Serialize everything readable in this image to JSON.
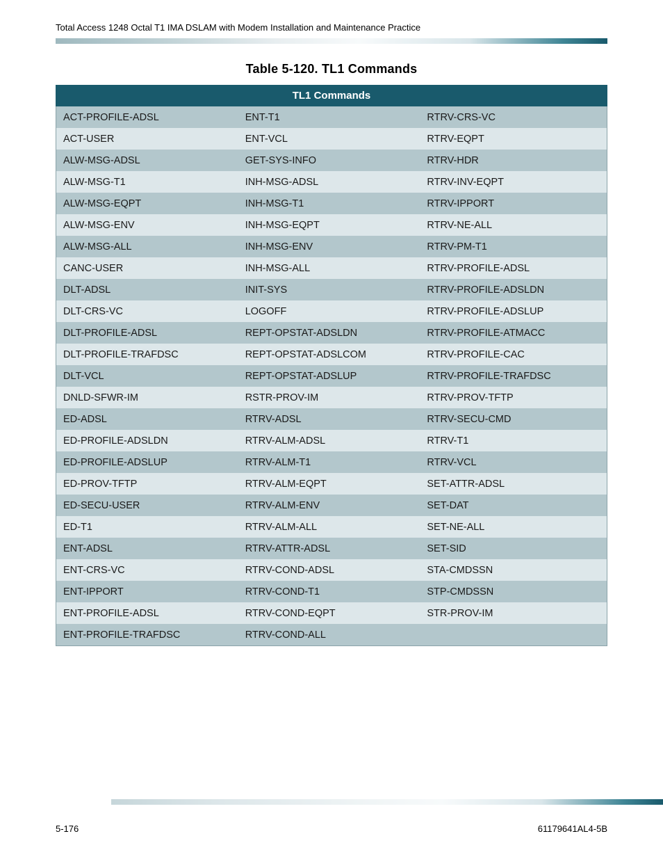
{
  "header": {
    "doc_title": "Total Access 1248 Octal T1 IMA DSLAM with Modem Installation and Maintenance Practice"
  },
  "gradient": {
    "stops_header": [
      "#9fb9bf",
      "#c0d2d6",
      "#e8eef0",
      "#f7fafb",
      "#d9e6ea",
      "#3f8595",
      "#195a6c"
    ],
    "stops_footer": [
      "#c6d6da",
      "#dde7ea",
      "#eff4f5",
      "#f7fafb",
      "#d9e6ea",
      "#3f8595",
      "#195a6c"
    ]
  },
  "table": {
    "caption": "Table 5-120.  TL1 Commands",
    "header": "TL1 Commands",
    "header_bg": "#195a6c",
    "header_fg": "#ffffff",
    "row_even_bg": "#dde7ea",
    "row_odd_bg": "#b3c7cc",
    "cell_fontsize": 14.5,
    "cell_fg": "#1a1a1a",
    "border_color": "#8aa2a8",
    "columns": 3,
    "col_widths_pct": [
      33,
      33,
      34
    ],
    "rows": [
      [
        "ACT-PROFILE-ADSL",
        "ENT-T1",
        "RTRV-CRS-VC"
      ],
      [
        "ACT-USER",
        "ENT-VCL",
        "RTRV-EQPT"
      ],
      [
        "ALW-MSG-ADSL",
        "GET-SYS-INFO",
        "RTRV-HDR"
      ],
      [
        "ALW-MSG-T1",
        "INH-MSG-ADSL",
        "RTRV-INV-EQPT"
      ],
      [
        "ALW-MSG-EQPT",
        "INH-MSG-T1",
        "RTRV-IPPORT"
      ],
      [
        "ALW-MSG-ENV",
        "INH-MSG-EQPT",
        "RTRV-NE-ALL"
      ],
      [
        "ALW-MSG-ALL",
        "INH-MSG-ENV",
        "RTRV-PM-T1"
      ],
      [
        "CANC-USER",
        "INH-MSG-ALL",
        "RTRV-PROFILE-ADSL"
      ],
      [
        "DLT-ADSL",
        "INIT-SYS",
        "RTRV-PROFILE-ADSLDN"
      ],
      [
        "DLT-CRS-VC",
        "LOGOFF",
        "RTRV-PROFILE-ADSLUP"
      ],
      [
        "DLT-PROFILE-ADSL",
        "REPT-OPSTAT-ADSLDN",
        "RTRV-PROFILE-ATMACC"
      ],
      [
        "DLT-PROFILE-TRAFDSC",
        "REPT-OPSTAT-ADSLCOM",
        "RTRV-PROFILE-CAC"
      ],
      [
        "DLT-VCL",
        "REPT-OPSTAT-ADSLUP",
        "RTRV-PROFILE-TRAFDSC"
      ],
      [
        "DNLD-SFWR-IM",
        "RSTR-PROV-IM",
        "RTRV-PROV-TFTP"
      ],
      [
        "ED-ADSL",
        "RTRV-ADSL",
        "RTRV-SECU-CMD"
      ],
      [
        "ED-PROFILE-ADSLDN",
        "RTRV-ALM-ADSL",
        "RTRV-T1"
      ],
      [
        "ED-PROFILE-ADSLUP",
        "RTRV-ALM-T1",
        "RTRV-VCL"
      ],
      [
        "ED-PROV-TFTP",
        "RTRV-ALM-EQPT",
        "SET-ATTR-ADSL"
      ],
      [
        "ED-SECU-USER",
        "RTRV-ALM-ENV",
        "SET-DAT"
      ],
      [
        "ED-T1",
        "RTRV-ALM-ALL",
        "SET-NE-ALL"
      ],
      [
        "ENT-ADSL",
        "RTRV-ATTR-ADSL",
        "SET-SID"
      ],
      [
        "ENT-CRS-VC",
        "RTRV-COND-ADSL",
        "STA-CMDSSN"
      ],
      [
        "ENT-IPPORT",
        "RTRV-COND-T1",
        "STP-CMDSSN"
      ],
      [
        "ENT-PROFILE-ADSL",
        "RTRV-COND-EQPT",
        "STR-PROV-IM"
      ],
      [
        "ENT-PROFILE-TRAFDSC",
        "RTRV-COND-ALL",
        ""
      ]
    ]
  },
  "footer": {
    "page_num": "5-176",
    "doc_code": "61179641AL4-5B"
  }
}
